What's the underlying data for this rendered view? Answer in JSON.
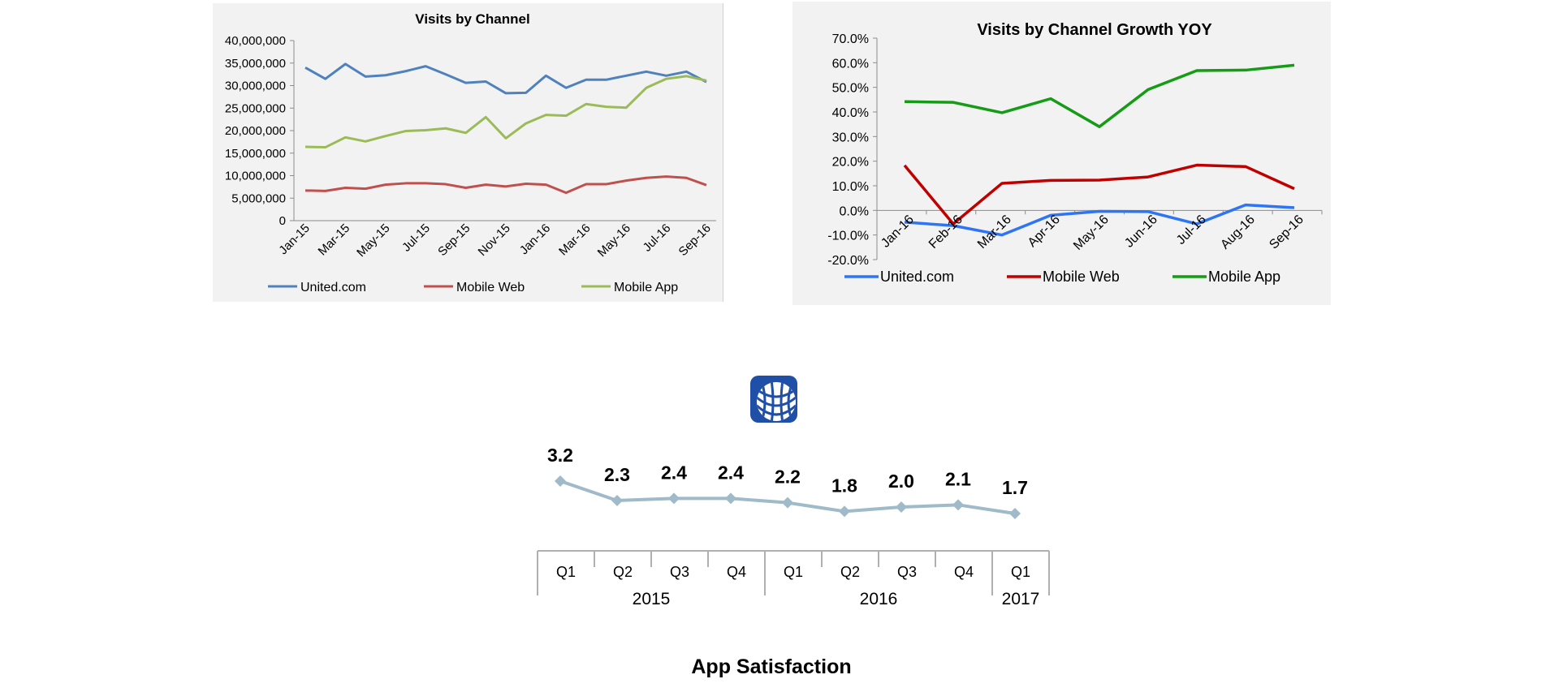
{
  "chart_data": [
    {
      "type": "line",
      "title": "Visits by Channel",
      "x": [
        "Jan-15",
        "Feb-15",
        "Mar-15",
        "Apr-15",
        "May-15",
        "Jun-15",
        "Jul-15",
        "Aug-15",
        "Sep-15",
        "Oct-15",
        "Nov-15",
        "Dec-15",
        "Jan-16",
        "Feb-16",
        "Mar-16",
        "Apr-16",
        "May-16",
        "Jun-16",
        "Jul-16",
        "Aug-16",
        "Sep-16"
      ],
      "x_tick_labels": [
        "Jan-15",
        "Mar-15",
        "May-15",
        "Jul-15",
        "Sep-15",
        "Nov-15",
        "Jan-16",
        "Mar-16",
        "May-16",
        "Jul-16",
        "Sep-16"
      ],
      "ylim": [
        0,
        40000000
      ],
      "y_tick_labels": [
        "0",
        "5,000,000",
        "10,000,000",
        "15,000,000",
        "20,000,000",
        "25,000,000",
        "30,000,000",
        "35,000,000",
        "40,000,000"
      ],
      "legend_position": "bottom",
      "grid": false,
      "series": [
        {
          "name": "United.com",
          "color": "#4f81bd",
          "values": [
            34000000,
            31500000,
            34800000,
            32000000,
            32300000,
            33200000,
            34300000,
            32500000,
            30600000,
            30900000,
            28300000,
            28400000,
            32200000,
            29500000,
            31300000,
            31300000,
            32200000,
            33100000,
            32200000,
            33100000,
            30800000
          ]
        },
        {
          "name": "Mobile Web",
          "color": "#c0504d",
          "values": [
            6700000,
            6600000,
            7300000,
            7100000,
            8000000,
            8300000,
            8300000,
            8100000,
            7300000,
            8000000,
            7600000,
            8200000,
            8000000,
            6200000,
            8100000,
            8100000,
            8900000,
            9500000,
            9800000,
            9500000,
            7900000
          ]
        },
        {
          "name": "Mobile App",
          "color": "#9bbb59",
          "values": [
            16400000,
            16300000,
            18500000,
            17600000,
            18800000,
            19900000,
            20100000,
            20500000,
            19500000,
            23000000,
            18300000,
            21600000,
            23500000,
            23300000,
            25900000,
            25300000,
            25100000,
            29500000,
            31500000,
            32100000,
            31100000
          ]
        }
      ]
    },
    {
      "type": "line",
      "title": "Visits by Channel Growth YOY",
      "x": [
        "Jan-16",
        "Feb-16",
        "Mar-16",
        "Apr-16",
        "May-16",
        "Jun-16",
        "Jul-16",
        "Aug-16",
        "Sep-16"
      ],
      "ylim": [
        -20,
        70
      ],
      "y_tick_labels": [
        "-20.0%",
        "-10.0%",
        "0.0%",
        "10.0%",
        "20.0%",
        "30.0%",
        "40.0%",
        "50.0%",
        "60.0%",
        "70.0%"
      ],
      "legend_position": "bottom",
      "grid": false,
      "series": [
        {
          "name": "United.com",
          "color": "#2e75f6",
          "values": [
            -4.8,
            -6.2,
            -10.0,
            -2.0,
            -0.4,
            -0.5,
            -5.5,
            2.2,
            1.1
          ]
        },
        {
          "name": "Mobile Web",
          "color": "#c00000",
          "values": [
            18.3,
            -5.5,
            11.0,
            12.2,
            12.3,
            13.6,
            18.4,
            17.8,
            8.8
          ]
        },
        {
          "name": "Mobile App",
          "color": "#159b15",
          "values": [
            44.2,
            43.9,
            39.7,
            45.4,
            34.0,
            49.1,
            56.8,
            57.0,
            59.0
          ]
        }
      ]
    },
    {
      "type": "line",
      "title": "App Satisfaction",
      "categories": [
        "Q1",
        "Q2",
        "Q3",
        "Q4",
        "Q1",
        "Q2",
        "Q3",
        "Q4",
        "Q1"
      ],
      "groups": [
        {
          "label": "2015",
          "count": 4
        },
        {
          "label": "2016",
          "count": 4
        },
        {
          "label": "2017",
          "count": 1
        }
      ],
      "values": [
        3.2,
        2.3,
        2.4,
        2.4,
        2.2,
        1.8,
        2.0,
        2.1,
        1.7
      ],
      "data_labels": [
        "3.2",
        "2.3",
        "2.4",
        "2.4",
        "2.2",
        "1.8",
        "2.0",
        "2.1",
        "1.7"
      ],
      "color": "#9fbac8",
      "marker": "diamond",
      "logo_icon": "globe-logo-icon",
      "logo_color": "#1f4fa6"
    }
  ]
}
